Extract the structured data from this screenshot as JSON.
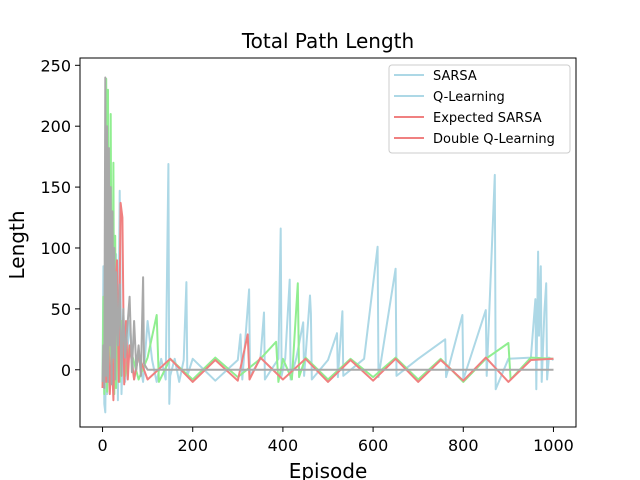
{
  "chart_data": {
    "type": "line",
    "title": "Total Path Length",
    "xlabel": "Episode",
    "ylabel": "Length",
    "xlim": [
      -50,
      1050
    ],
    "ylim": [
      -47,
      256
    ],
    "xticks": [
      0,
      200,
      400,
      600,
      800,
      1000
    ],
    "yticks": [
      0,
      50,
      100,
      150,
      200,
      250
    ],
    "grid": false,
    "legend_position": "top-right",
    "legend": [
      {
        "name": "SARSA",
        "color": "#add8e6"
      },
      {
        "name": "Q-Learning",
        "color": "#add8e6"
      },
      {
        "name": "Expected SARSA",
        "color": "#f08080"
      },
      {
        "name": "Double Q-Learning",
        "color": "#f08080"
      }
    ],
    "series_colors": {
      "light_blue": "#add8e6",
      "light_green": "#90ee90",
      "light_coral": "#f08080",
      "dark_gray": "#a9a9a9"
    },
    "series": [
      {
        "color": "#add8e6",
        "points": [
          [
            0,
            -12
          ],
          [
            2,
            85
          ],
          [
            4,
            -28
          ],
          [
            6,
            -35
          ],
          [
            8,
            40
          ],
          [
            10,
            -20
          ],
          [
            14,
            60
          ],
          [
            18,
            -10
          ],
          [
            22,
            110
          ],
          [
            26,
            -15
          ],
          [
            30,
            95
          ],
          [
            34,
            -25
          ],
          [
            38,
            147
          ],
          [
            42,
            -20
          ],
          [
            46,
            30
          ],
          [
            50,
            -10
          ],
          [
            60,
            40
          ],
          [
            70,
            -8
          ],
          [
            80,
            12
          ],
          [
            90,
            -10
          ],
          [
            100,
            40
          ],
          [
            110,
            8
          ],
          [
            120,
            -10
          ],
          [
            130,
            9
          ],
          [
            140,
            -8
          ],
          [
            146,
            169
          ],
          [
            148,
            -28
          ],
          [
            150,
            -5
          ],
          [
            160,
            9
          ],
          [
            170,
            -10
          ],
          [
            180,
            8
          ],
          [
            186,
            72
          ],
          [
            188,
            -5
          ],
          [
            200,
            9
          ],
          [
            250,
            -9
          ],
          [
            300,
            8
          ],
          [
            306,
            29
          ],
          [
            310,
            -8
          ],
          [
            325,
            66
          ],
          [
            327,
            -5
          ],
          [
            350,
            9
          ],
          [
            358,
            47
          ],
          [
            360,
            -8
          ],
          [
            390,
            9
          ],
          [
            395,
            116
          ],
          [
            397,
            -5
          ],
          [
            405,
            9
          ],
          [
            415,
            74
          ],
          [
            417,
            -8
          ],
          [
            430,
            10
          ],
          [
            445,
            39
          ],
          [
            447,
            -5
          ],
          [
            455,
            35
          ],
          [
            460,
            61
          ],
          [
            462,
            46
          ],
          [
            464,
            -8
          ],
          [
            500,
            8
          ],
          [
            520,
            30
          ],
          [
            522,
            -6
          ],
          [
            532,
            48
          ],
          [
            534,
            -5
          ],
          [
            580,
            9
          ],
          [
            610,
            101
          ],
          [
            612,
            -6
          ],
          [
            650,
            83
          ],
          [
            652,
            -5
          ],
          [
            700,
            9
          ],
          [
            760,
            25
          ],
          [
            762,
            -6
          ],
          [
            798,
            45
          ],
          [
            800,
            -8
          ],
          [
            850,
            49
          ],
          [
            852,
            -5
          ],
          [
            870,
            160
          ],
          [
            872,
            -16
          ],
          [
            900,
            9
          ],
          [
            950,
            10
          ],
          [
            960,
            58
          ],
          [
            962,
            -16
          ],
          [
            966,
            97
          ],
          [
            968,
            28
          ],
          [
            972,
            85
          ],
          [
            974,
            -10
          ],
          [
            978,
            28
          ],
          [
            980,
            48
          ],
          [
            984,
            71
          ],
          [
            986,
            -8
          ],
          [
            990,
            10
          ],
          [
            1000,
            8
          ]
        ]
      },
      {
        "color": "#90ee90",
        "points": [
          [
            0,
            -14
          ],
          [
            2,
            60
          ],
          [
            4,
            -20
          ],
          [
            6,
            100
          ],
          [
            8,
            239
          ],
          [
            10,
            -18
          ],
          [
            12,
            230
          ],
          [
            14,
            50
          ],
          [
            16,
            -12
          ],
          [
            18,
            210
          ],
          [
            20,
            30
          ],
          [
            22,
            -10
          ],
          [
            24,
            170
          ],
          [
            26,
            -20
          ],
          [
            28,
            110
          ],
          [
            30,
            -15
          ],
          [
            34,
            60
          ],
          [
            38,
            -10
          ],
          [
            42,
            40
          ],
          [
            50,
            -5
          ],
          [
            60,
            20
          ],
          [
            80,
            -8
          ],
          [
            100,
            10
          ],
          [
            120,
            45
          ],
          [
            125,
            -10
          ],
          [
            150,
            9
          ],
          [
            200,
            -8
          ],
          [
            250,
            10
          ],
          [
            300,
            -6
          ],
          [
            350,
            9
          ],
          [
            385,
            23
          ],
          [
            390,
            -10
          ],
          [
            400,
            9
          ],
          [
            420,
            -8
          ],
          [
            433,
            71
          ],
          [
            436,
            -6
          ],
          [
            450,
            10
          ],
          [
            500,
            -8
          ],
          [
            550,
            9
          ],
          [
            600,
            -6
          ],
          [
            650,
            10
          ],
          [
            700,
            -8
          ],
          [
            750,
            9
          ],
          [
            800,
            -10
          ],
          [
            850,
            9
          ],
          [
            900,
            22
          ],
          [
            905,
            -8
          ],
          [
            950,
            10
          ],
          [
            1000,
            9
          ]
        ]
      },
      {
        "color": "#f08080",
        "points": [
          [
            0,
            -15
          ],
          [
            4,
            20
          ],
          [
            8,
            -10
          ],
          [
            12,
            30
          ],
          [
            16,
            -20
          ],
          [
            20,
            15
          ],
          [
            24,
            -25
          ],
          [
            28,
            55
          ],
          [
            32,
            90
          ],
          [
            36,
            -10
          ],
          [
            40,
            137
          ],
          [
            44,
            125
          ],
          [
            48,
            -12
          ],
          [
            52,
            40
          ],
          [
            56,
            -8
          ],
          [
            60,
            20
          ],
          [
            70,
            -8
          ],
          [
            80,
            12
          ],
          [
            100,
            -8
          ],
          [
            150,
            9
          ],
          [
            200,
            -10
          ],
          [
            250,
            8
          ],
          [
            300,
            -9
          ],
          [
            322,
            29
          ],
          [
            326,
            -8
          ],
          [
            350,
            10
          ],
          [
            400,
            -8
          ],
          [
            450,
            9
          ],
          [
            500,
            -10
          ],
          [
            550,
            8
          ],
          [
            600,
            -9
          ],
          [
            650,
            9
          ],
          [
            700,
            -10
          ],
          [
            750,
            8
          ],
          [
            800,
            -9
          ],
          [
            850,
            10
          ],
          [
            900,
            -10
          ],
          [
            950,
            8
          ],
          [
            1000,
            9
          ]
        ]
      },
      {
        "color": "#a9a9a9",
        "points": [
          [
            0,
            -10
          ],
          [
            2,
            20
          ],
          [
            4,
            -15
          ],
          [
            6,
            240
          ],
          [
            8,
            -5
          ],
          [
            10,
            200
          ],
          [
            12,
            -10
          ],
          [
            14,
            182
          ],
          [
            16,
            20
          ],
          [
            18,
            150
          ],
          [
            20,
            -12
          ],
          [
            22,
            130
          ],
          [
            24,
            10
          ],
          [
            26,
            100
          ],
          [
            28,
            -8
          ],
          [
            30,
            80
          ],
          [
            34,
            20
          ],
          [
            38,
            70
          ],
          [
            42,
            -5
          ],
          [
            46,
            50
          ],
          [
            50,
            10
          ],
          [
            60,
            60
          ],
          [
            65,
            -2
          ],
          [
            70,
            40
          ],
          [
            75,
            0
          ],
          [
            80,
            20
          ],
          [
            85,
            -5
          ],
          [
            90,
            76
          ],
          [
            92,
            5
          ],
          [
            100,
            0
          ],
          [
            150,
            0
          ],
          [
            200,
            0
          ],
          [
            250,
            0
          ],
          [
            300,
            0
          ],
          [
            350,
            0
          ],
          [
            400,
            0
          ],
          [
            450,
            0
          ],
          [
            500,
            0
          ],
          [
            550,
            0
          ],
          [
            600,
            0
          ],
          [
            650,
            0
          ],
          [
            700,
            0
          ],
          [
            750,
            0
          ],
          [
            800,
            0
          ],
          [
            850,
            0
          ],
          [
            900,
            0
          ],
          [
            950,
            0
          ],
          [
            1000,
            0
          ]
        ]
      }
    ]
  }
}
